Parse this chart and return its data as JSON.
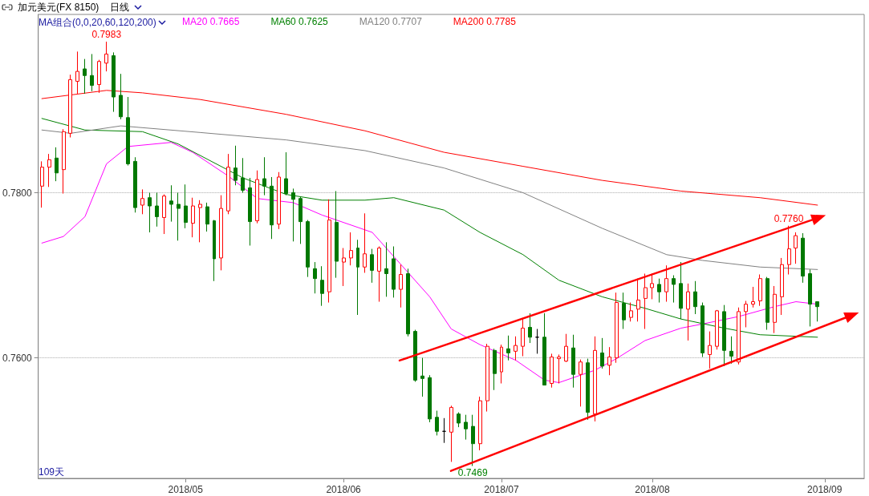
{
  "chart_data": {
    "type": "candlestick",
    "title": "加元美元(FX 8150)",
    "subtitle": "日线",
    "annotations": [
      "MA组合(0,0,20,60,120,200)",
      "109天",
      {
        "text": "0.7983",
        "y": 0.7983
      },
      {
        "text": "0.7469",
        "y": 0.7469
      },
      {
        "text": "0.7760",
        "y": 0.776
      }
    ],
    "categories": [
      null,
      null,
      null,
      null,
      null,
      null,
      null,
      null,
      null,
      null,
      null,
      null,
      null,
      null,
      null,
      null,
      null,
      null,
      null,
      null,
      "2018/05",
      null,
      null,
      null,
      null,
      null,
      null,
      null,
      null,
      null,
      null,
      null,
      null,
      null,
      null,
      null,
      null,
      null,
      null,
      null,
      null,
      null,
      "2018/06",
      null,
      null,
      null,
      null,
      null,
      null,
      null,
      null,
      null,
      null,
      null,
      null,
      null,
      null,
      null,
      null,
      null,
      null,
      null,
      null,
      null,
      "2018/07",
      null,
      null,
      null,
      null,
      null,
      null,
      null,
      null,
      null,
      null,
      null,
      null,
      null,
      null,
      null,
      null,
      null,
      null,
      null,
      null,
      "2018/08",
      null,
      null,
      null,
      null,
      null,
      null,
      null,
      null,
      null,
      null,
      null,
      null,
      null,
      null,
      null,
      null,
      null,
      null,
      null,
      null,
      null,
      null,
      null,
      "2018/09",
      null,
      null,
      null,
      null,
      null
    ],
    "ohlc": [
      [
        0.7808,
        0.7838,
        0.7782,
        0.7831
      ],
      [
        0.7831,
        0.7847,
        0.7807,
        0.784
      ],
      [
        0.7842,
        0.7855,
        0.7814,
        0.7824
      ],
      [
        0.7828,
        0.7877,
        0.7799,
        0.7874
      ],
      [
        0.7872,
        0.7943,
        0.7867,
        0.7937
      ],
      [
        0.7935,
        0.7971,
        0.792,
        0.7947
      ],
      [
        0.795,
        0.7962,
        0.792,
        0.7942
      ],
      [
        0.7942,
        0.7968,
        0.7923,
        0.793
      ],
      [
        0.7931,
        0.7961,
        0.7921,
        0.7959
      ],
      [
        0.7957,
        0.7983,
        0.7947,
        0.7968
      ],
      [
        0.7966,
        0.797,
        0.7898,
        0.7916
      ],
      [
        0.7918,
        0.7944,
        0.7889,
        0.7892
      ],
      [
        0.7891,
        0.7916,
        0.7833,
        0.7835
      ],
      [
        0.7838,
        0.7843,
        0.7776,
        0.7782
      ],
      [
        0.7785,
        0.7804,
        0.7774,
        0.7793
      ],
      [
        0.7794,
        0.78,
        0.7752,
        0.7784
      ],
      [
        0.7784,
        0.78,
        0.7759,
        0.7771
      ],
      [
        0.777,
        0.7798,
        0.775,
        0.7796
      ],
      [
        0.779,
        0.7809,
        0.7765,
        0.7786
      ],
      [
        0.7786,
        0.78,
        0.7742,
        0.7781
      ],
      [
        0.7784,
        0.781,
        0.7757,
        0.7764
      ],
      [
        0.7763,
        0.7794,
        0.7746,
        0.7784
      ],
      [
        0.7782,
        0.7791,
        0.774,
        0.7786
      ],
      [
        0.7783,
        0.7788,
        0.7753,
        0.7762
      ],
      [
        0.7766,
        0.7767,
        0.7693,
        0.772
      ],
      [
        0.7721,
        0.7797,
        0.7706,
        0.7781
      ],
      [
        0.7778,
        0.7847,
        0.7774,
        0.7831
      ],
      [
        0.783,
        0.7857,
        0.7809,
        0.7815
      ],
      [
        0.7818,
        0.7842,
        0.78,
        0.7803
      ],
      [
        0.7806,
        0.7818,
        0.7736,
        0.7765
      ],
      [
        0.7766,
        0.7827,
        0.7763,
        0.7816
      ],
      [
        0.7817,
        0.7843,
        0.7797,
        0.7808
      ],
      [
        0.7808,
        0.7819,
        0.7744,
        0.7761
      ],
      [
        0.7762,
        0.7825,
        0.7756,
        0.7819
      ],
      [
        0.7817,
        0.7849,
        0.7797,
        0.7799
      ],
      [
        0.78,
        0.7805,
        0.7741,
        0.7792
      ],
      [
        0.7793,
        0.7795,
        0.7738,
        0.7765
      ],
      [
        0.7765,
        0.7767,
        0.7698,
        0.771
      ],
      [
        0.7708,
        0.7716,
        0.7678,
        0.7696
      ],
      [
        0.7694,
        0.7711,
        0.7663,
        0.7678
      ],
      [
        0.768,
        0.7792,
        0.7667,
        0.7767
      ],
      [
        0.7764,
        0.7802,
        0.7697,
        0.7717
      ],
      [
        0.7716,
        0.7733,
        0.7687,
        0.7721
      ],
      [
        0.7721,
        0.7752,
        0.7712,
        0.773
      ],
      [
        0.7733,
        0.7743,
        0.7652,
        0.771
      ],
      [
        0.771,
        0.7775,
        0.7703,
        0.7726
      ],
      [
        0.7725,
        0.7732,
        0.7691,
        0.7706
      ],
      [
        0.7705,
        0.7735,
        0.7668,
        0.7733
      ],
      [
        0.7708,
        0.774,
        0.7674,
        0.7702
      ],
      [
        0.772,
        0.7735,
        0.7673,
        0.7683
      ],
      [
        0.7683,
        0.7713,
        0.7661,
        0.7701
      ],
      [
        0.7702,
        0.7708,
        0.7626,
        0.7629
      ],
      [
        0.7632,
        0.7634,
        0.7571,
        0.7573
      ],
      [
        0.7578,
        0.76,
        0.7553,
        0.7575
      ],
      [
        0.7576,
        0.7579,
        0.7522,
        0.7526
      ],
      [
        0.7528,
        0.7536,
        0.7506,
        0.7511
      ],
      [
        0.7511,
        0.7527,
        0.7497,
        0.7511
      ],
      [
        0.751,
        0.7542,
        0.7474,
        0.754
      ],
      [
        0.7532,
        0.7534,
        0.7516,
        0.7521
      ],
      [
        0.7522,
        0.7531,
        0.7501,
        0.7514
      ],
      [
        0.7517,
        0.7531,
        0.7469,
        0.7496
      ],
      [
        0.7496,
        0.7553,
        0.7488,
        0.7548
      ],
      [
        0.7548,
        0.7617,
        0.7535,
        0.7614
      ],
      [
        0.7609,
        0.7611,
        0.7561,
        0.7581
      ],
      [
        0.7583,
        0.7616,
        0.7569,
        0.7613
      ],
      [
        0.7611,
        0.7627,
        0.7597,
        0.7606
      ],
      [
        0.7608,
        0.7626,
        0.7597,
        0.7615
      ],
      [
        0.7614,
        0.7647,
        0.7602,
        0.7636
      ],
      [
        0.7637,
        0.7654,
        0.7618,
        0.7625
      ],
      [
        0.7625,
        0.7635,
        0.7605,
        0.7625
      ],
      [
        0.7625,
        0.7654,
        0.7567,
        0.7567
      ],
      [
        0.7569,
        0.7605,
        0.7564,
        0.7601
      ],
      [
        0.7599,
        0.7604,
        0.7569,
        0.7601
      ],
      [
        0.7596,
        0.7629,
        0.7595,
        0.7614
      ],
      [
        0.7612,
        0.7628,
        0.7564,
        0.758
      ],
      [
        0.758,
        0.7598,
        0.7541,
        0.7595
      ],
      [
        0.7594,
        0.7599,
        0.7525,
        0.7534
      ],
      [
        0.7532,
        0.7626,
        0.7523,
        0.7609
      ],
      [
        0.7606,
        0.7624,
        0.7587,
        0.759
      ],
      [
        0.7591,
        0.7613,
        0.7579,
        0.7601
      ],
      [
        0.76,
        0.7679,
        0.7594,
        0.7667
      ],
      [
        0.7666,
        0.7679,
        0.7635,
        0.7646
      ],
      [
        0.7649,
        0.7667,
        0.7644,
        0.7657
      ],
      [
        0.7659,
        0.7696,
        0.7644,
        0.767
      ],
      [
        0.7672,
        0.7702,
        0.7635,
        0.7685
      ],
      [
        0.7685,
        0.7702,
        0.7671,
        0.769
      ],
      [
        0.7689,
        0.7696,
        0.7667,
        0.768
      ],
      [
        0.768,
        0.7712,
        0.7668,
        0.7696
      ],
      [
        0.7696,
        0.77,
        0.7667,
        0.7689
      ],
      [
        0.769,
        0.7716,
        0.7647,
        0.766
      ],
      [
        0.7659,
        0.769,
        0.7621,
        0.768
      ],
      [
        0.768,
        0.7693,
        0.7653,
        0.7662
      ],
      [
        0.7663,
        0.7667,
        0.7601,
        0.7606
      ],
      [
        0.7604,
        0.7632,
        0.7587,
        0.7615
      ],
      [
        0.7614,
        0.7658,
        0.761,
        0.7657
      ],
      [
        0.7656,
        0.7664,
        0.759,
        0.7609
      ],
      [
        0.7608,
        0.7626,
        0.7593,
        0.7602
      ],
      [
        0.7595,
        0.7661,
        0.7592,
        0.7656
      ],
      [
        0.7656,
        0.7669,
        0.7637,
        0.7665
      ],
      [
        0.7665,
        0.7686,
        0.7661,
        0.7668
      ],
      [
        0.7669,
        0.7701,
        0.7663,
        0.7696
      ],
      [
        0.7696,
        0.7698,
        0.7634,
        0.7643
      ],
      [
        0.7643,
        0.7687,
        0.763,
        0.7677
      ],
      [
        0.7674,
        0.7721,
        0.7652,
        0.7713
      ],
      [
        0.7713,
        0.776,
        0.7701,
        0.7732
      ],
      [
        0.7733,
        0.7752,
        0.7714,
        0.7748
      ],
      [
        0.7745,
        0.7751,
        0.7691,
        0.7699
      ],
      [
        0.7702,
        0.7707,
        0.7638,
        0.7665
      ],
      [
        0.7668,
        0.7668,
        0.7644,
        0.7662
      ],
      null,
      null,
      null,
      null,
      null,
      null
    ],
    "colors": [
      "#ff0000",
      "#ff0000",
      "#007800",
      "#ff0000",
      "#ff0000",
      "#ff0000",
      "#007800",
      "#007800",
      "#ff0000",
      "#ff0000",
      "#007800",
      "#007800",
      "#007800",
      "#007800",
      "#ff0000",
      "#007800",
      "#007800",
      "#ff0000",
      "#007800",
      "#007800",
      "#007800",
      "#ff0000",
      "#ff0000",
      "#007800",
      "#007800",
      "#ff0000",
      "#ff0000",
      "#007800",
      "#007800",
      "#007800",
      "#ff0000",
      "#007800",
      "#007800",
      "#ff0000",
      "#007800",
      "#007800",
      "#007800",
      "#007800",
      "#007800",
      "#007800",
      "#ff0000",
      "#007800",
      "#ff0000",
      "#ff0000",
      "#007800",
      "#ff0000",
      "#007800",
      "#ff0000",
      "#007800",
      "#007800",
      "#ff0000",
      "#007800",
      "#007800",
      "#007800",
      "#007800",
      "#007800",
      "#000000",
      "#ff0000",
      "#007800",
      "#007800",
      "#007800",
      "#ff0000",
      "#ff0000",
      "#007800",
      "#ff0000",
      "#007800",
      "#ff0000",
      "#ff0000",
      "#007800",
      "#000000",
      "#007800",
      "#ff0000",
      "#ff0000",
      "#ff0000",
      "#007800",
      "#ff0000",
      "#007800",
      "#ff0000",
      "#007800",
      "#ff0000",
      "#ff0000",
      "#007800",
      "#ff0000",
      "#ff0000",
      "#ff0000",
      "#ff0000",
      "#007800",
      "#ff0000",
      "#007800",
      "#007800",
      "#ff0000",
      "#007800",
      "#007800",
      "#ff0000",
      "#ff0000",
      "#007800",
      "#007800",
      "#ff0000",
      "#ff0000",
      "#ff0000",
      "#ff0000",
      "#007800",
      "#ff0000",
      "#ff0000",
      "#ff0000",
      "#ff0000",
      "#007800",
      "#007800",
      "#007800",
      null,
      null,
      null,
      null,
      null,
      null
    ],
    "series": [
      {
        "type": "line",
        "name": "MA20 0.7665",
        "color": "#ff00ff",
        "values": [
          0.7739,
          null,
          null,
          0.7747,
          null,
          null,
          0.7771,
          null,
          null,
          0.7835,
          null,
          null,
          0.7856,
          null,
          null,
          null,
          null,
          null,
          0.7861,
          null,
          null,
          0.7849,
          null,
          null,
          null,
          null,
          0.782,
          null,
          null,
          null,
          0.7793,
          null,
          null,
          null,
          null,
          0.7788,
          null,
          null,
          null,
          0.7773,
          null,
          null,
          null,
          null,
          null,
          null,
          0.7752,
          null,
          null,
          null,
          0.7713,
          null,
          null,
          null,
          0.7674,
          null,
          null,
          0.7635,
          null,
          null,
          null,
          0.7616,
          null,
          null,
          null,
          null,
          0.7597,
          null,
          null,
          null,
          0.7573,
          null,
          0.757,
          null,
          null,
          null,
          null,
          0.7585,
          null,
          null,
          0.7599,
          null,
          null,
          null,
          0.7621,
          null,
          null,
          null,
          null,
          0.7636,
          null,
          null,
          0.7641,
          null,
          null,
          null,
          null,
          0.765,
          null,
          null,
          null,
          null,
          0.7662,
          null,
          null,
          0.7668,
          null,
          null,
          0.7665,
          null,
          null,
          null,
          null,
          null,
          null
        ]
      },
      {
        "type": "line",
        "name": "MA60 0.7625",
        "color": "#008000",
        "values": [
          0.789,
          null,
          null,
          null,
          null,
          null,
          0.7876,
          null,
          null,
          null,
          null,
          null,
          null,
          null,
          0.7874,
          null,
          null,
          null,
          null,
          0.7859,
          null,
          null,
          null,
          null,
          null,
          null,
          null,
          null,
          0.7818,
          null,
          null,
          null,
          null,
          null,
          0.7798,
          null,
          null,
          null,
          null,
          0.7791,
          null,
          null,
          null,
          null,
          null,
          0.7791,
          null,
          null,
          null,
          0.7794,
          null,
          null,
          null,
          null,
          null,
          null,
          0.7779,
          null,
          null,
          null,
          null,
          0.7752,
          null,
          null,
          null,
          null,
          null,
          0.7725,
          null,
          null,
          null,
          null,
          0.7694,
          null,
          null,
          null,
          null,
          null,
          0.7674,
          null,
          null,
          null,
          null,
          null,
          0.766,
          null,
          null,
          null,
          null,
          0.7647,
          null,
          null,
          null,
          null,
          null,
          0.7636,
          null,
          null,
          null,
          null,
          0.7628,
          null,
          null,
          null,
          null,
          null,
          null,
          null,
          0.7625,
          null,
          null,
          null,
          null,
          null,
          null
        ]
      },
      {
        "type": "line",
        "name": "MA120 0.7707",
        "color": "#808080",
        "values": [
          0.7876,
          null,
          null,
          null,
          0.7872,
          null,
          null,
          null,
          null,
          null,
          null,
          0.7881,
          null,
          null,
          null,
          null,
          null,
          null,
          null,
          null,
          null,
          null,
          0.7873,
          null,
          null,
          null,
          null,
          null,
          null,
          null,
          null,
          null,
          null,
          null,
          0.7864,
          null,
          null,
          null,
          null,
          null,
          null,
          null,
          null,
          null,
          null,
          0.7851,
          null,
          null,
          null,
          null,
          null,
          null,
          null,
          null,
          null,
          null,
          0.783,
          null,
          null,
          null,
          null,
          null,
          null,
          null,
          null,
          null,
          null,
          0.78,
          null,
          null,
          null,
          null,
          null,
          null,
          null,
          null,
          null,
          null,
          0.7757,
          null,
          null,
          null,
          null,
          null,
          null,
          null,
          null,
          0.7725,
          null,
          null,
          null,
          null,
          0.7718,
          null,
          null,
          null,
          null,
          null,
          null,
          null,
          0.771,
          null,
          null,
          null,
          null,
          null,
          null,
          null,
          0.7707,
          null,
          null,
          null,
          null,
          null,
          null
        ]
      },
      {
        "type": "line",
        "name": "MA200 0.7785",
        "color": "#ff0000",
        "values": [
          0.7914,
          null,
          null,
          null,
          null,
          null,
          null,
          null,
          null,
          0.7924,
          null,
          null,
          null,
          null,
          0.7921,
          null,
          null,
          null,
          null,
          null,
          null,
          null,
          0.7913,
          null,
          null,
          null,
          null,
          null,
          null,
          null,
          null,
          null,
          null,
          null,
          0.7895,
          null,
          null,
          null,
          null,
          null,
          null,
          null,
          null,
          null,
          null,
          0.7875,
          null,
          null,
          null,
          null,
          null,
          null,
          null,
          null,
          null,
          null,
          0.7849,
          null,
          null,
          null,
          null,
          null,
          null,
          null,
          null,
          null,
          null,
          0.7832,
          null,
          null,
          null,
          null,
          null,
          null,
          null,
          null,
          null,
          null,
          0.7815,
          null,
          null,
          null,
          null,
          null,
          null,
          null,
          null,
          null,
          null,
          0.7802,
          null,
          null,
          null,
          null,
          null,
          null,
          null,
          null,
          null,
          null,
          0.7794,
          null,
          null,
          null,
          null,
          null,
          null,
          null,
          0.7785,
          null,
          null,
          null,
          null,
          null,
          null
        ]
      }
    ],
    "ylim": [
      0.7454,
      0.8016
    ],
    "yticks": [
      {
        "value": 0.76,
        "label": "0.7600"
      },
      {
        "value": 0.78,
        "label": "0.7800"
      }
    ],
    "grid": "y",
    "legend": "top left",
    "marker": "none"
  }
}
